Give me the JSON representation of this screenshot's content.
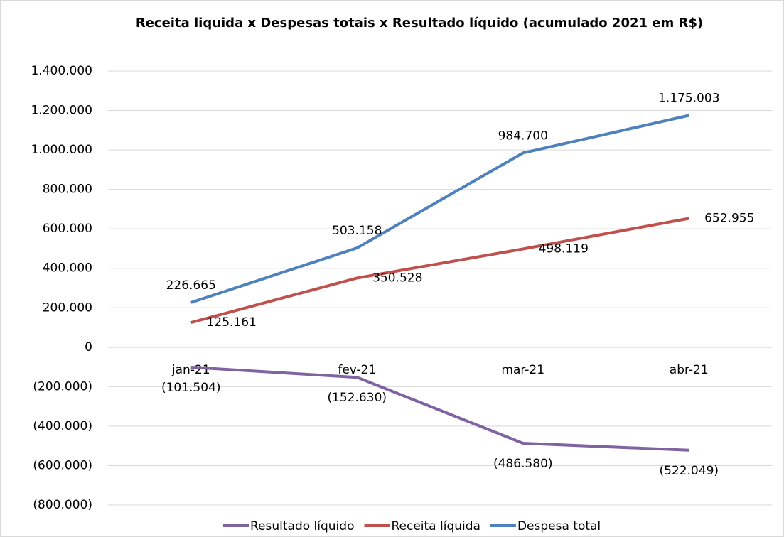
{
  "chart_data": {
    "type": "line",
    "title": "Receita liquida x Despesas totais x Resultado líquido (acumulado 2021 em R$)",
    "categories": [
      "jan-21",
      "fev-21",
      "mar-21",
      "abr-21"
    ],
    "series": [
      {
        "name": "Resultado líquido",
        "color": "#8064a2",
        "values": [
          -101504,
          -152630,
          -486580,
          -522049
        ],
        "value_labels": [
          "(101.504)",
          "(152.630)",
          "(486.580)",
          "(522.049)"
        ]
      },
      {
        "name": "Receita líquida",
        "color": "#c0504d",
        "values": [
          125161,
          350528,
          498119,
          652955
        ],
        "value_labels": [
          "125.161",
          "350.528",
          "498.119",
          "652.955"
        ]
      },
      {
        "name": "Despesa total",
        "color": "#4f81bd",
        "values": [
          226665,
          503158,
          984700,
          1175003
        ],
        "value_labels": [
          "226.665",
          "503.158",
          "984.700",
          "1.175.003"
        ]
      }
    ],
    "ylim": [
      -800000,
      1400000
    ],
    "yticks": [
      {
        "value": -800000,
        "label": "(800.000)"
      },
      {
        "value": -600000,
        "label": "(600.000)"
      },
      {
        "value": -400000,
        "label": "(400.000)"
      },
      {
        "value": -200000,
        "label": "(200.000)"
      },
      0,
      {
        "value": 200000,
        "label": "200.000"
      },
      {
        "value": 400000,
        "label": "400.000"
      },
      {
        "value": 600000,
        "label": "600.000"
      },
      {
        "value": 800000,
        "label": "800.000"
      },
      {
        "value": 1000000,
        "label": "1.000.000"
      },
      {
        "value": 1200000,
        "label": "1.200.000"
      },
      {
        "value": 1400000,
        "label": "1.400.000"
      }
    ],
    "grid": true,
    "legend": "bottom"
  }
}
